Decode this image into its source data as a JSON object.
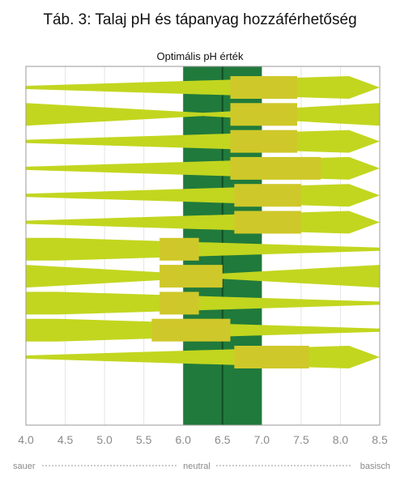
{
  "title": "Táb. 3: Talaj pH és tápanyag hozzáférhetőség",
  "chart_data": {
    "type": "other",
    "title": "Táb. 3: Talaj pH és tápanyag hozzáférhetőség",
    "optimal_label": "Optimális pH érték",
    "optimal_range": [
      6.0,
      7.0
    ],
    "xlim": [
      4.0,
      8.5
    ],
    "xticks": [
      "4.0",
      "4.5",
      "5.0",
      "5.5",
      "6.0",
      "6.5",
      "7.0",
      "7.5",
      "8.0",
      "8.5"
    ],
    "scale_labels": {
      "left": "sauer",
      "middle": "neutral",
      "right": "basisch"
    },
    "grid": true,
    "colors": {
      "band": "#c2d61f",
      "box": "#cfc82a",
      "optimal": "#207a3c",
      "neutral_line": "#134d25",
      "grid": "#e4e4e4"
    },
    "rows": [
      {
        "shape": "right",
        "box": [
          6.6,
          7.45
        ]
      },
      {
        "shape": "center",
        "box": [
          6.6,
          7.45
        ]
      },
      {
        "shape": "right",
        "box": [
          6.6,
          7.45
        ]
      },
      {
        "shape": "right",
        "box": [
          6.6,
          7.75
        ]
      },
      {
        "shape": "right",
        "box": [
          6.65,
          7.5
        ]
      },
      {
        "shape": "right",
        "box": [
          6.65,
          7.5
        ]
      },
      {
        "shape": "left",
        "box": [
          5.7,
          6.2
        ]
      },
      {
        "shape": "center",
        "box": [
          5.7,
          6.5
        ]
      },
      {
        "shape": "left",
        "box": [
          5.7,
          6.2
        ]
      },
      {
        "shape": "left",
        "box": [
          5.6,
          6.6
        ]
      },
      {
        "shape": "right",
        "box": [
          6.65,
          7.6
        ]
      }
    ]
  }
}
